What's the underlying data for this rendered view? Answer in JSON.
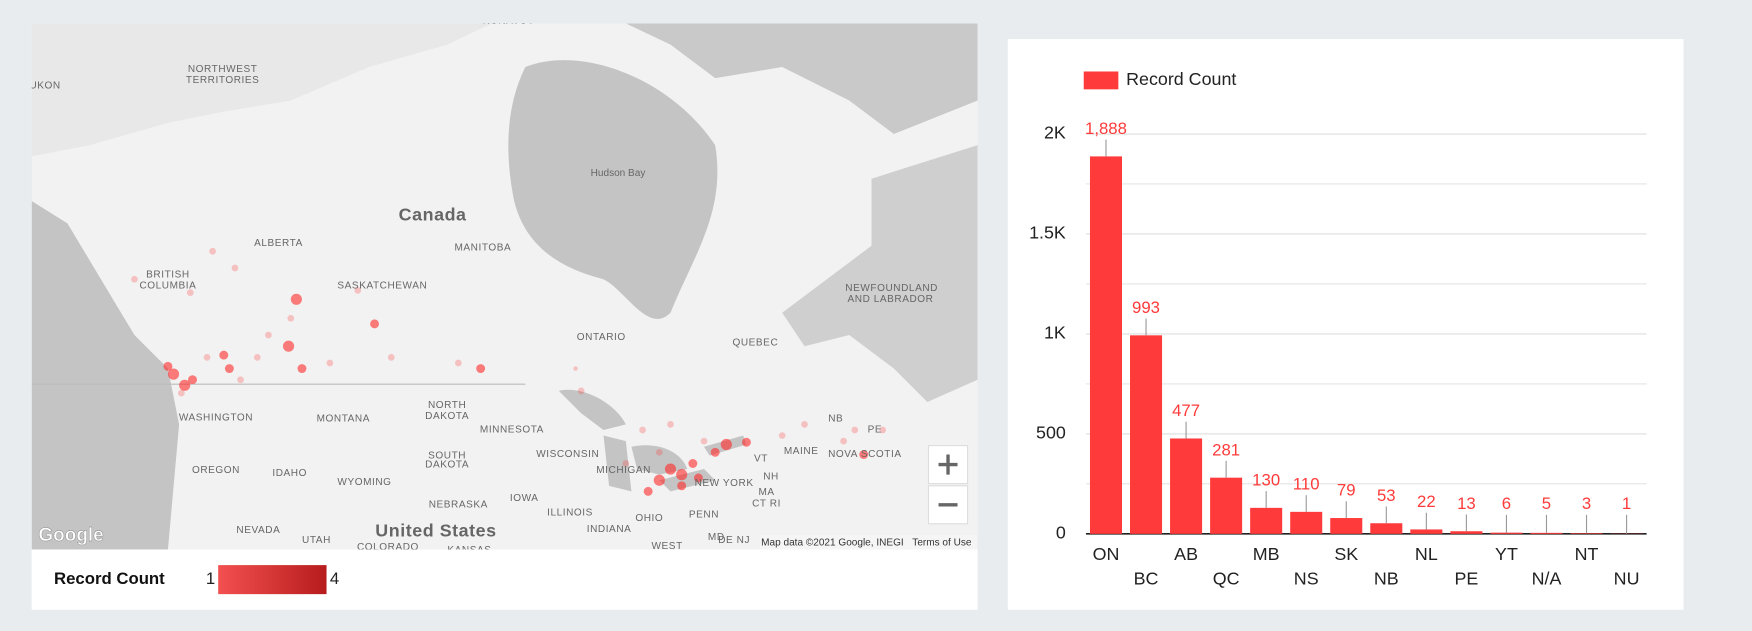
{
  "chart_data": {
    "type": "bar",
    "legend": "Record Count",
    "categories": [
      "ON",
      "BC",
      "AB",
      "QC",
      "MB",
      "NS",
      "SK",
      "NB",
      "NL",
      "PE",
      "YT",
      "N/A",
      "NT",
      "NU"
    ],
    "series": [
      {
        "name": "Record Count",
        "color": "#ff3a3a",
        "values": [
          1888,
          993,
          477,
          281,
          130,
          110,
          79,
          53,
          22,
          13,
          6,
          5,
          3,
          1
        ],
        "value_labels": [
          "1,888",
          "993",
          "477",
          "281",
          "130",
          "110",
          "79",
          "53",
          "22",
          "13",
          "6",
          "5",
          "3",
          "1"
        ]
      }
    ],
    "ylim": [
      0,
      2000
    ],
    "yticks": [
      0,
      500,
      {
        "value": 1000,
        "label": "1K"
      },
      {
        "value": 1500,
        "label": "1.5K"
      },
      {
        "value": 2000,
        "label": "2K"
      }
    ],
    "grid": true
  },
  "map": {
    "labels": [
      "NUNAVUT",
      "UKON",
      "NORTHWEST",
      "TERRITORIES",
      "Hudson Bay",
      "Canada",
      "ALBERTA",
      "MANITOBA",
      "BRITISH",
      "COLUMBIA",
      "SASKATCHEWAN",
      "NEWFOUNDLAND",
      "AND LABRADOR",
      "ONTARIO",
      "QUEBEC",
      "NORTH",
      "DAKOTA",
      "WASHINGTON",
      "MONTANA",
      "MINNESOTA",
      "NB",
      "PE",
      "SOUTH",
      "DAKOTA",
      "WISCONSIN",
      "MAINE",
      "NOVA SCOTIA",
      "VT",
      "MICHIGAN",
      "OREGON",
      "IDAHO",
      "WYOMING",
      "NEW YORK",
      "NH",
      "MA",
      "CT RI",
      "NEBRASKA",
      "IOWA",
      "ILLINOIS",
      "OHIO",
      "PENN",
      "INDIANA",
      "NEVADA",
      "United States",
      "UTAH",
      "COLORADO",
      "KANSAS",
      "WEST",
      "MD",
      "DE NJ"
    ],
    "logo": "Google",
    "attribution": "Map data ©2021 Google, INEGI",
    "terms": "Terms of Use",
    "legend": {
      "title": "Record Count",
      "min": "1",
      "max": "4"
    }
  }
}
